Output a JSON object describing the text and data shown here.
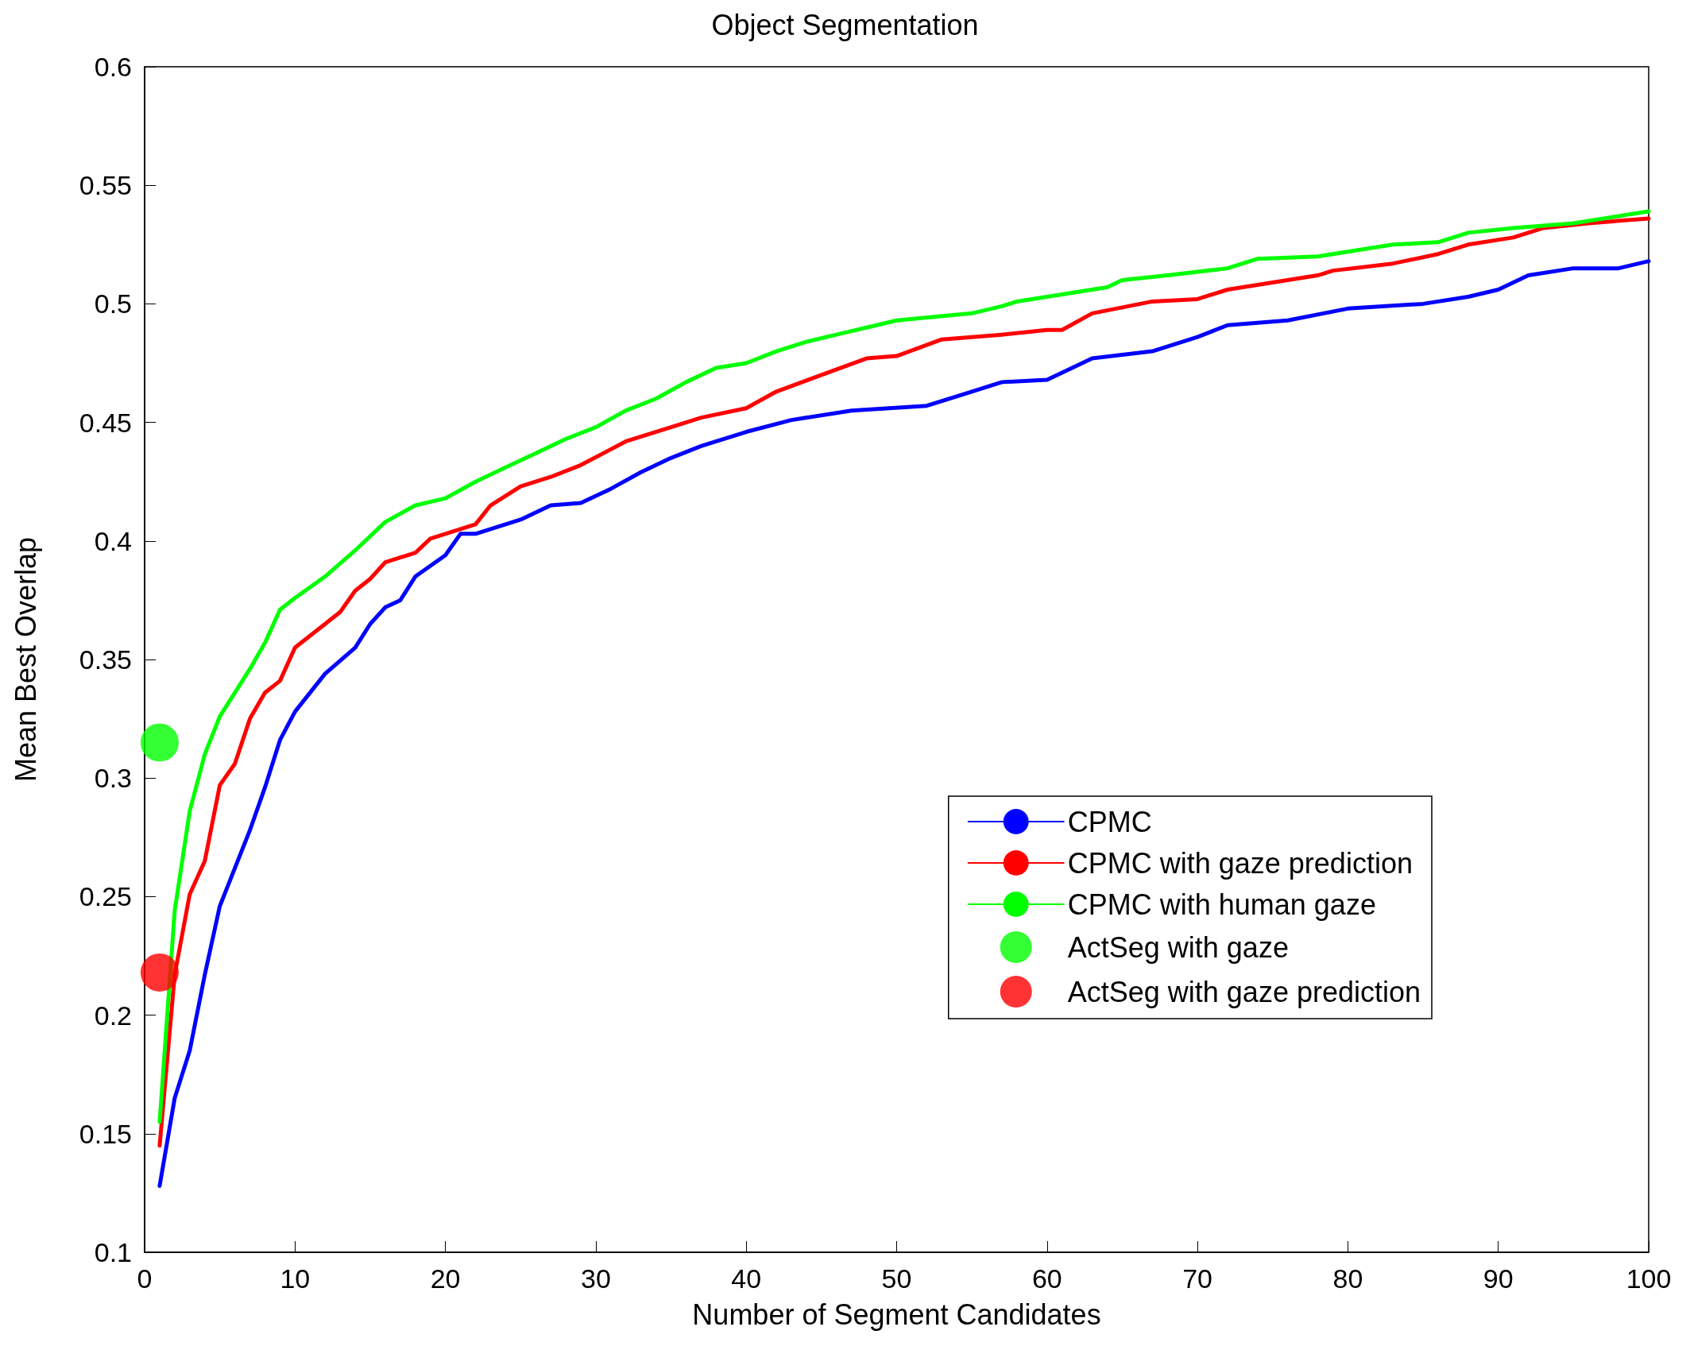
{
  "chart_data": {
    "type": "line",
    "title": "Object Segmentation",
    "xlabel": "Number of Segment Candidates",
    "ylabel": "Mean Best Overlap",
    "xlim": [
      0,
      100
    ],
    "xticks": [
      0,
      10,
      20,
      30,
      40,
      50,
      60,
      70,
      80,
      90,
      100
    ],
    "ylim": [
      0.1,
      0.6
    ],
    "yticks": [
      0.1,
      0.15,
      0.2,
      0.25,
      0.3,
      0.35,
      0.4,
      0.45,
      0.5,
      0.55,
      0.6
    ],
    "grid": false,
    "legend": "bottom right",
    "marker": "none",
    "line_style": "solid",
    "series": [
      {
        "name": "CPMC",
        "color": "#0000ff",
        "x": [
          1,
          2,
          3,
          4,
          5,
          7,
          8,
          9,
          10,
          12,
          14,
          15,
          16,
          17,
          18,
          20,
          21,
          22,
          25,
          27,
          29,
          31,
          33,
          35,
          37,
          40,
          43,
          47,
          52,
          55,
          57,
          60,
          63,
          67,
          70,
          72,
          76,
          80,
          85,
          88,
          90,
          92,
          95,
          98,
          100
        ],
        "values": [
          0.128,
          0.165,
          0.185,
          0.217,
          0.246,
          0.278,
          0.296,
          0.316,
          0.328,
          0.344,
          0.355,
          0.365,
          0.372,
          0.375,
          0.385,
          0.394,
          0.403,
          0.403,
          0.409,
          0.415,
          0.416,
          0.422,
          0.429,
          0.435,
          0.44,
          0.446,
          0.451,
          0.455,
          0.457,
          0.463,
          0.467,
          0.468,
          0.477,
          0.48,
          0.486,
          0.491,
          0.493,
          0.498,
          0.5,
          0.503,
          0.506,
          0.512,
          0.515,
          0.515,
          0.518
        ]
      },
      {
        "name": "CPMC with gaze prediction",
        "color": "#ff0000",
        "x": [
          1,
          2,
          3,
          4,
          5,
          6,
          7,
          8,
          9,
          10,
          12,
          13,
          14,
          15,
          16,
          18,
          19,
          21,
          22,
          23,
          25,
          27,
          29,
          32,
          35,
          37,
          40,
          42,
          45,
          48,
          50,
          53,
          57,
          60,
          61,
          63,
          67,
          70,
          72,
          75,
          78,
          79,
          83,
          86,
          88,
          91,
          93,
          96,
          100
        ],
        "values": [
          0.145,
          0.217,
          0.251,
          0.265,
          0.297,
          0.306,
          0.325,
          0.336,
          0.341,
          0.355,
          0.365,
          0.37,
          0.379,
          0.384,
          0.391,
          0.395,
          0.401,
          0.405,
          0.407,
          0.415,
          0.423,
          0.427,
          0.432,
          0.442,
          0.448,
          0.452,
          0.456,
          0.463,
          0.47,
          0.477,
          0.478,
          0.485,
          0.487,
          0.489,
          0.489,
          0.496,
          0.501,
          0.502,
          0.506,
          0.509,
          0.512,
          0.514,
          0.517,
          0.521,
          0.525,
          0.528,
          0.532,
          0.534,
          0.536
        ]
      },
      {
        "name": "CPMC with human gaze",
        "color": "#00ff00",
        "x": [
          1,
          2,
          3,
          4,
          5,
          7,
          8,
          9,
          10,
          12,
          14,
          16,
          18,
          20,
          22,
          24,
          26,
          28,
          30,
          32,
          34,
          36,
          38,
          40,
          42,
          44,
          46,
          48,
          50,
          55,
          57,
          58,
          62,
          64,
          65,
          68,
          72,
          74,
          78,
          80,
          83,
          86,
          88,
          91,
          95,
          100
        ],
        "values": [
          0.155,
          0.244,
          0.286,
          0.31,
          0.326,
          0.346,
          0.357,
          0.371,
          0.376,
          0.385,
          0.396,
          0.408,
          0.415,
          0.418,
          0.425,
          0.431,
          0.437,
          0.443,
          0.448,
          0.455,
          0.46,
          0.467,
          0.473,
          0.475,
          0.48,
          0.484,
          0.487,
          0.49,
          0.493,
          0.496,
          0.499,
          0.501,
          0.505,
          0.507,
          0.51,
          0.512,
          0.515,
          0.519,
          0.52,
          0.522,
          0.525,
          0.526,
          0.53,
          0.532,
          0.534,
          0.539
        ]
      },
      {
        "name": "ActSeg with gaze",
        "type": "scatter",
        "marker": "circle",
        "color": "#00ff00",
        "x": [
          1
        ],
        "values": [
          0.315
        ]
      },
      {
        "name": "ActSeg with gaze prediction",
        "type": "scatter",
        "marker": "circle",
        "color": "#ff0000",
        "x": [
          1
        ],
        "values": [
          0.218
        ]
      }
    ]
  }
}
